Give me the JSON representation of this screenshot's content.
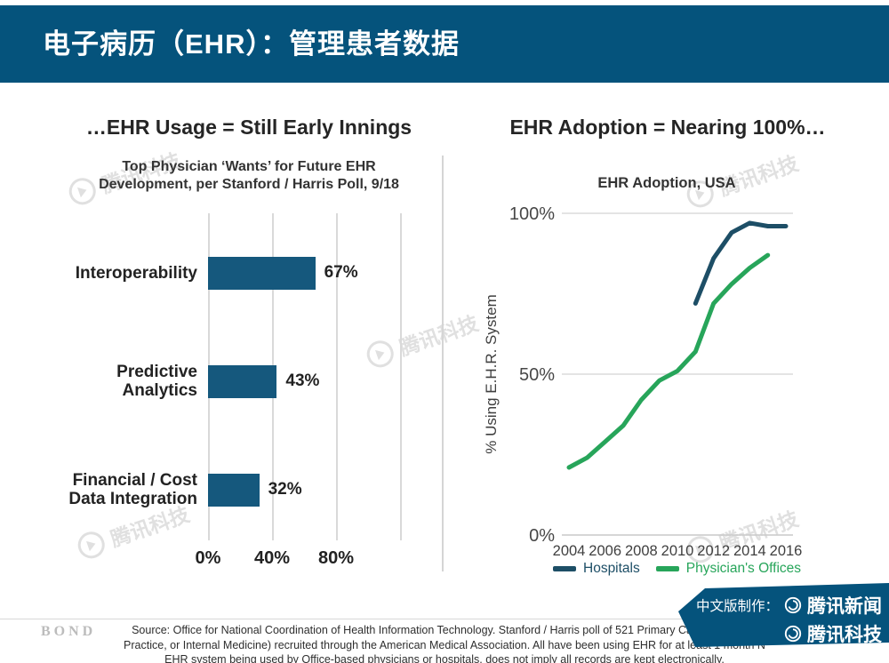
{
  "header": {
    "title": "电子病历（EHR）：管理患者数据"
  },
  "left_chart": {
    "title": "…EHR Usage = Still Early Innings",
    "subtitle_line1": "Top Physician ‘Wants’ for Future EHR",
    "subtitle_line2": "Development, per Stanford / Harris Poll, 9/18"
  },
  "right_chart": {
    "title": "EHR Adoption = Nearing 100%…",
    "subtitle": "EHR Adoption, USA",
    "ylabel": "% Using E.H.R. System"
  },
  "chart_data": [
    {
      "type": "bar",
      "orientation": "horizontal",
      "title": "Top Physician ‘Wants’ for Future EHR Development, per Stanford / Harris Poll, 9/18",
      "categories": [
        "Interoperability",
        "Predictive Analytics",
        "Financial / Cost Data Integration"
      ],
      "category_lines": [
        [
          "Interoperability"
        ],
        [
          "Predictive",
          "Analytics"
        ],
        [
          "Financial / Cost",
          "Data Integration"
        ]
      ],
      "values": [
        67,
        43,
        32
      ],
      "value_labels": [
        "67%",
        "43%",
        "32%"
      ],
      "xlim": [
        0,
        120
      ],
      "xticks": [
        0,
        40,
        80
      ],
      "xtick_labels": [
        "0%",
        "40%",
        "80%"
      ],
      "gridlines": [
        0,
        40,
        80,
        120
      ],
      "bar_color": "#15587d",
      "grid": "vertical"
    },
    {
      "type": "line",
      "title": "EHR Adoption, USA",
      "ylabel": "% Using E.H.R. System",
      "ylim": [
        0,
        100
      ],
      "yticks": [
        0,
        50,
        100
      ],
      "ytick_labels": [
        "0%",
        "50%",
        "100%"
      ],
      "xticks": [
        2004,
        2006,
        2008,
        2010,
        2012,
        2014,
        2016
      ],
      "grid": "horizontal",
      "legend_position": "bottom",
      "series": [
        {
          "name": "Hospitals",
          "color": "#1d4e66",
          "x": [
            2011,
            2012,
            2013,
            2014,
            2015,
            2016
          ],
          "values": [
            72,
            86,
            94,
            97,
            96,
            96
          ]
        },
        {
          "name": "Physician's Offices",
          "color": "#27a55a",
          "x": [
            2004,
            2005,
            2006,
            2007,
            2008,
            2009,
            2010,
            2011,
            2012,
            2013,
            2014,
            2015
          ],
          "values": [
            21,
            24,
            29,
            34,
            42,
            48,
            51,
            57,
            72,
            78,
            83,
            87
          ]
        }
      ]
    }
  ],
  "legend": [
    {
      "label": "Hospitals",
      "color": "#1d4e66"
    },
    {
      "label": "Physician's Offices",
      "color": "#27a55a"
    }
  ],
  "watermark": {
    "text": "腾讯科技"
  },
  "footer": {
    "logo": "BOND",
    "source_line1": "Source: Office for National Coordination of Health Information Technology. Stanford / Harris poll of 521 Primary Care physicians",
    "source_line2": "Practice, or Internal Medicine) recruited through the American Medical Association.  All have been using EHR for at least 1 month N",
    "source_line3": "EHR system being used by Office-based physicians or hospitals, does not imply all records are kept electronically.",
    "ribbon": {
      "label": "中文版制作：",
      "brand1": "腾讯新闻",
      "brand2": "腾讯科技"
    }
  },
  "colors": {
    "header_bg": "#05537c",
    "bar": "#15587d",
    "hospitals_line": "#1d4e66",
    "physicians_line": "#27a55a",
    "grid": "#d9d9d9",
    "watermark": "#d9d9d9"
  }
}
